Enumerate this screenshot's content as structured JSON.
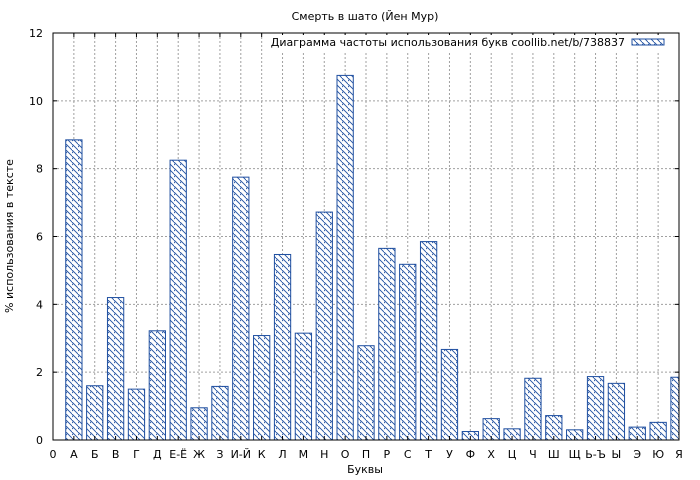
{
  "colors": {
    "bar_stroke": "#1f4fa0",
    "hatch": "#1f4fa0",
    "background": "#ffffff"
  },
  "chart_data": {
    "type": "bar",
    "title": "Смерть в шато (Йен Мур)",
    "xlabel": "Буквы",
    "ylabel": "% использования в тексте",
    "ylim": [
      0,
      12
    ],
    "yticks": [
      0,
      2,
      4,
      6,
      8,
      10,
      12
    ],
    "grid": true,
    "legend_position": "top-right",
    "x_tick_labels": [
      "0",
      "А",
      "Б",
      "В",
      "Г",
      "Д",
      "Е-Ё",
      "Ж",
      "З",
      "И-Й",
      "К",
      "Л",
      "М",
      "Н",
      "О",
      "П",
      "Р",
      "С",
      "Т",
      "У",
      "Ф",
      "Х",
      "Ц",
      "Ч",
      "Ш",
      "Щ",
      "Ь-Ъ",
      "Ы",
      "Э",
      "Ю",
      "Я"
    ],
    "categories": [
      "А",
      "Б",
      "В",
      "Г",
      "Д",
      "Е-Ё",
      "Ж",
      "З",
      "И-Й",
      "К",
      "Л",
      "М",
      "Н",
      "О",
      "П",
      "Р",
      "С",
      "Т",
      "У",
      "Ф",
      "Х",
      "Ц",
      "Ч",
      "Ш",
      "Щ",
      "Ь-Ъ",
      "Ы",
      "Э",
      "Ю",
      "Я"
    ],
    "series": [
      {
        "name": "Диаграмма частоты использования букв coollib.net/b/738837",
        "values": [
          8.85,
          1.6,
          4.2,
          1.5,
          3.22,
          8.25,
          0.95,
          1.58,
          7.75,
          3.08,
          5.47,
          3.15,
          6.72,
          10.75,
          2.78,
          5.65,
          5.18,
          5.85,
          2.67,
          0.25,
          0.63,
          0.33,
          1.82,
          0.72,
          0.3,
          1.87,
          1.67,
          0.38,
          0.52,
          1.85
        ]
      }
    ]
  }
}
